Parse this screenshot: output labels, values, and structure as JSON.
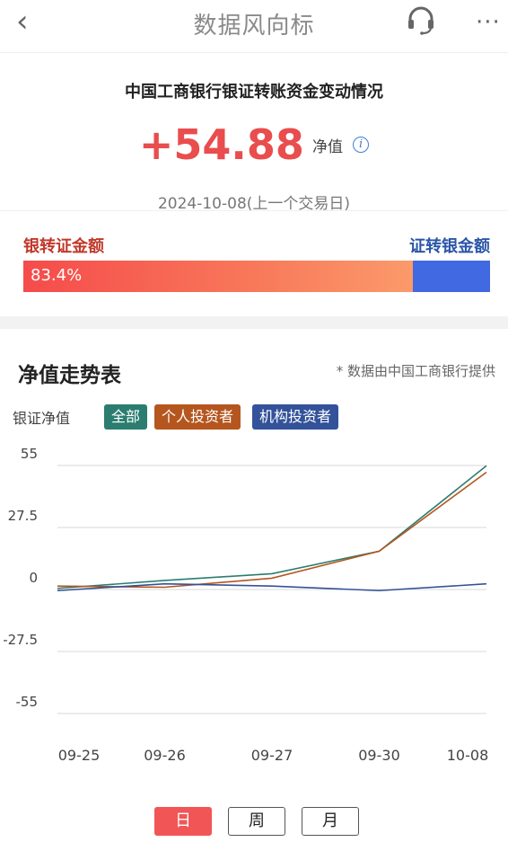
{
  "nav": {
    "back_glyph": "‹",
    "title": "数据风向标",
    "more_glyph": "···",
    "support_icon": "headset-icon"
  },
  "summary": {
    "title": "中国工商银行银证转账资金变动情况",
    "net_value": "+54.88",
    "net_label": "净值",
    "info_glyph": "i",
    "date": "2024-10-08(上一个交易日)"
  },
  "flow": {
    "bank_to_securities_label": "银转证金额",
    "securities_to_bank_label": "证转银金额",
    "bank_to_securities_pct": "83.4%",
    "bank_to_securities_fraction": 0.834,
    "colors": {
      "bank_to_securities": "#f54b4b",
      "securities_to_bank": "#4169e1"
    }
  },
  "trend": {
    "title": "净值走势表",
    "source_note": "* 数据由中国工商银行提供",
    "series_label": "银证净值",
    "filters": [
      {
        "label": "全部",
        "color": "#2b7d6f"
      },
      {
        "label": "个人投资者",
        "color": "#b5561f"
      },
      {
        "label": "机构投资者",
        "color": "#33529a"
      }
    ]
  },
  "chart_data": {
    "type": "line",
    "x": [
      "09-25",
      "09-26",
      "09-27",
      "09-30",
      "10-08"
    ],
    "y_ticks": [
      "55",
      "27.5",
      "0",
      "-27.5",
      "-55"
    ],
    "ylim": [
      -55,
      55
    ],
    "series": [
      {
        "name": "全部",
        "color": "#2b7d6f",
        "values": [
          0.5,
          4,
          7,
          17,
          54.88
        ]
      },
      {
        "name": "个人投资者",
        "color": "#b5561f",
        "values": [
          1.5,
          1,
          5,
          17,
          52
        ]
      },
      {
        "name": "机构投资者",
        "color": "#33529a",
        "values": [
          -0.5,
          2.5,
          1.5,
          -0.5,
          2.5
        ]
      }
    ],
    "grid": true
  },
  "period": {
    "day": "日",
    "week": "周",
    "month": "月",
    "active": "day"
  }
}
